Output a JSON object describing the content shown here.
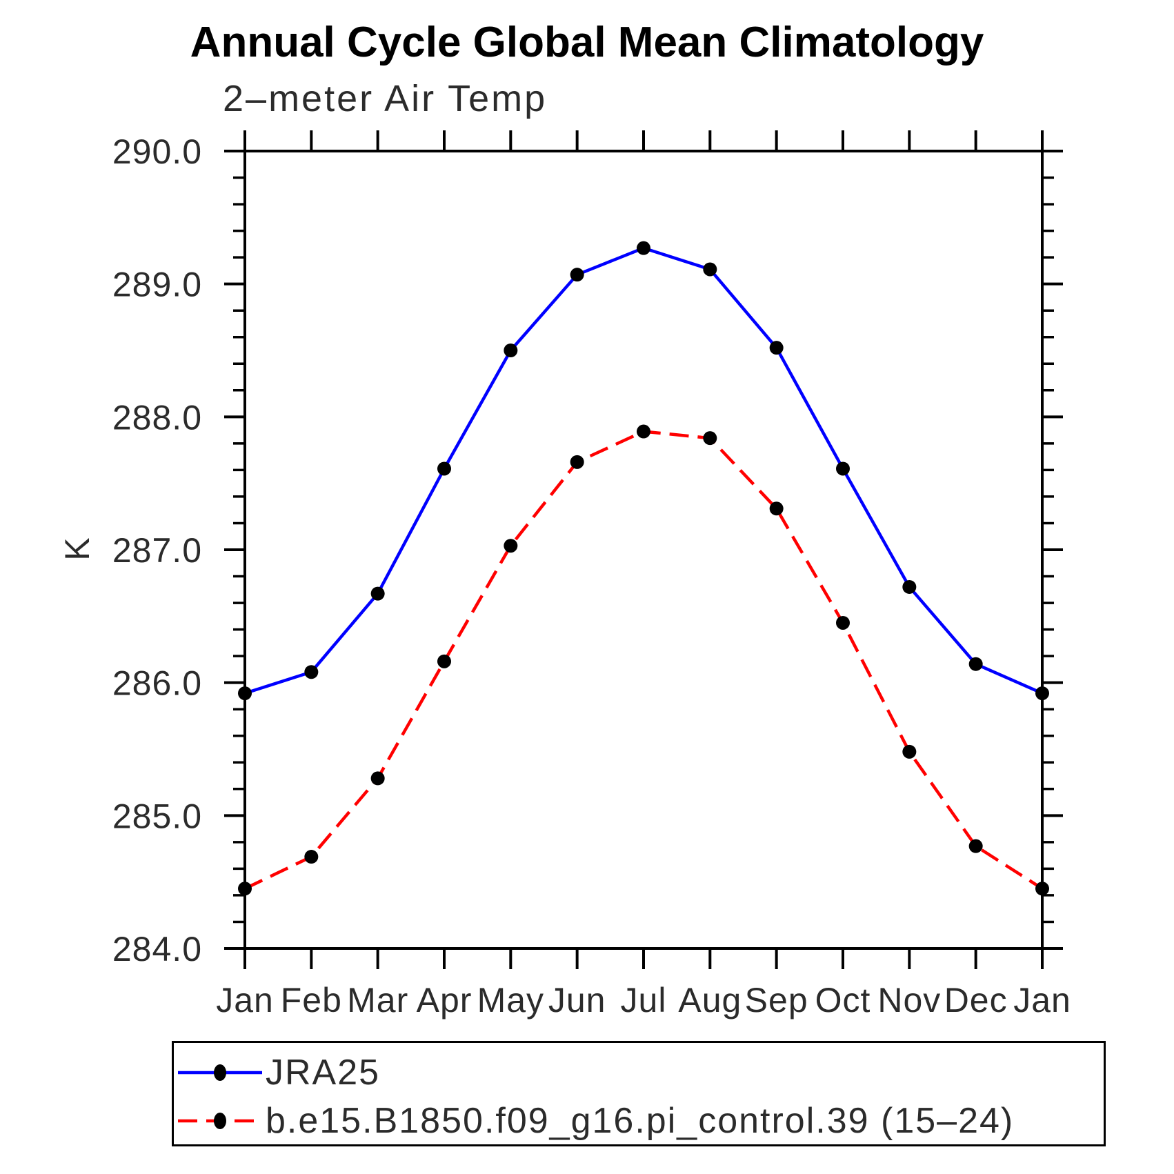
{
  "chart_data": {
    "type": "line",
    "title": "Annual Cycle Global Mean Climatology",
    "subtitle": "2–meter Air Temp",
    "ylabel": "K",
    "categories": [
      "Jan",
      "Feb",
      "Mar",
      "Apr",
      "May",
      "Jun",
      "Jul",
      "Aug",
      "Sep",
      "Oct",
      "Nov",
      "Dec",
      "Jan"
    ],
    "y_tick_labels": [
      "284.0",
      "285.0",
      "286.0",
      "287.0",
      "288.0",
      "289.0",
      "290.0"
    ],
    "ylim": [
      284.0,
      290.0
    ],
    "y_major_step": 1.0,
    "y_minor_step": 0.2,
    "grid": false,
    "legend_position": "bottom-left-box",
    "axis_color": "#000000",
    "marker_color": "#000000",
    "series": [
      {
        "name": "JRA25",
        "color": "#0000ff",
        "style": "solid",
        "values": [
          285.92,
          286.08,
          286.67,
          287.61,
          288.5,
          289.07,
          289.27,
          289.11,
          288.52,
          287.61,
          286.72,
          286.14,
          285.92
        ]
      },
      {
        "name": "b.e15.B1850.f09_g16.pi_control.39 (15–24)",
        "color": "#ff0000",
        "style": "dashed",
        "values": [
          284.45,
          284.69,
          285.28,
          286.16,
          287.03,
          287.66,
          287.89,
          287.84,
          287.31,
          286.45,
          285.48,
          284.77,
          284.45
        ]
      }
    ]
  }
}
